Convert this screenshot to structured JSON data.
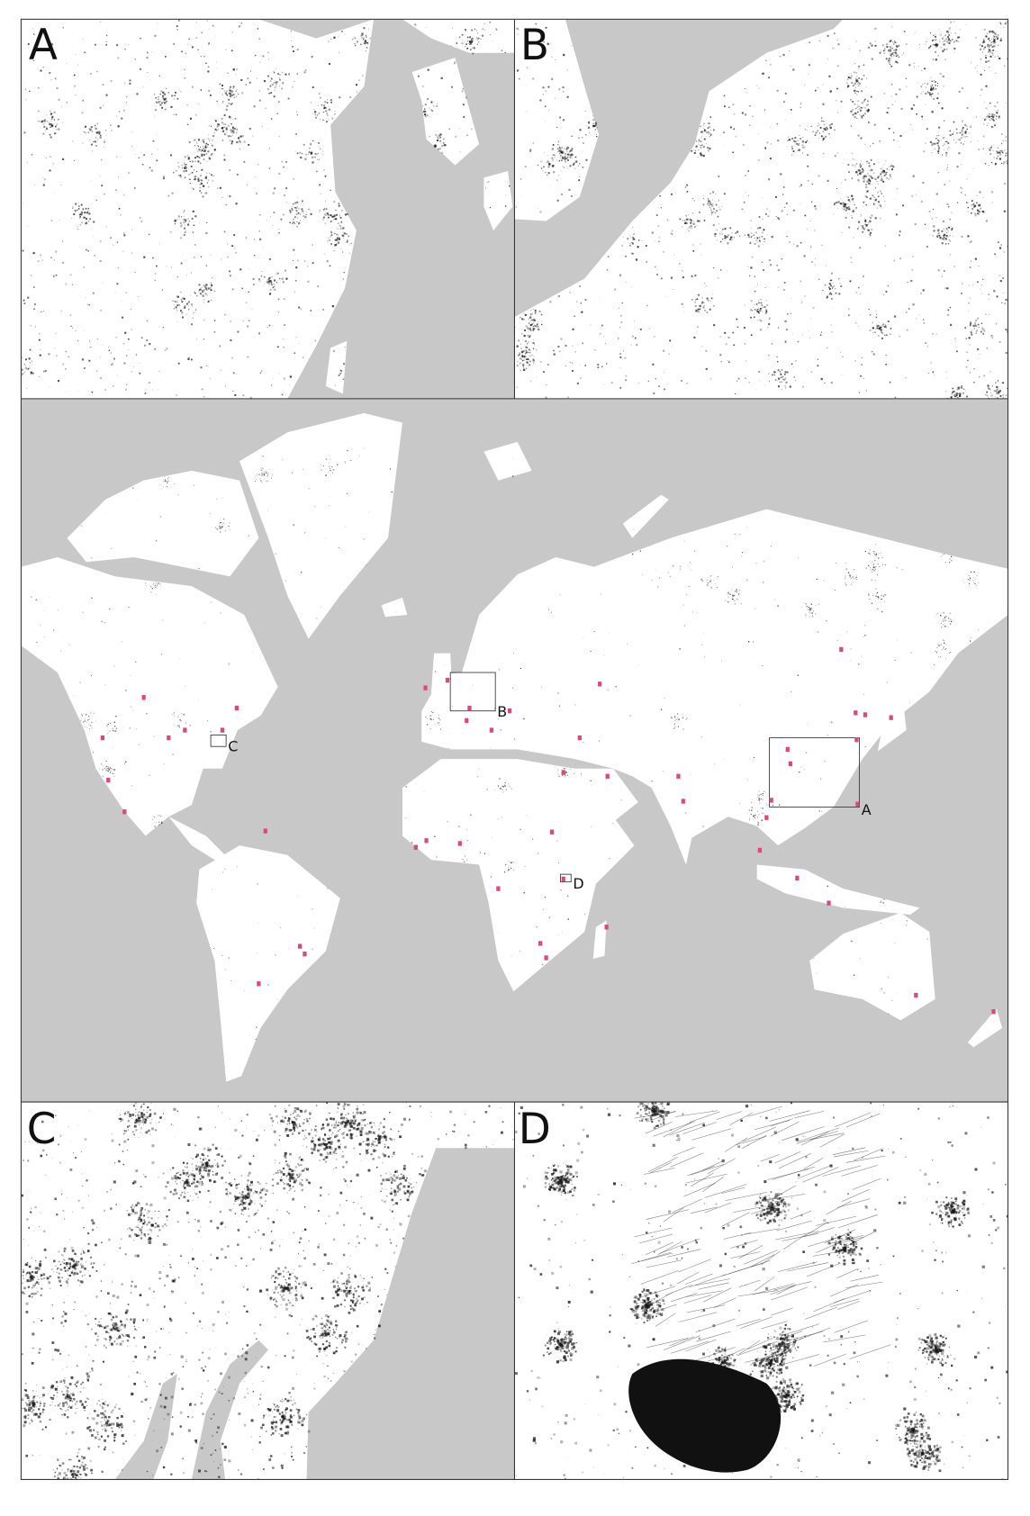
{
  "figure": {
    "panels": {
      "A": {
        "label": "A"
      },
      "B": {
        "label": "B"
      },
      "C": {
        "label": "C"
      },
      "D": {
        "label": "D"
      }
    },
    "world_map": {
      "box_labels": {
        "A": "A",
        "B": "B",
        "C": "C",
        "D": "D"
      }
    },
    "colors": {
      "water": "#c8c8c8",
      "land": "#ffffff",
      "settlement": "#1a1a1a",
      "marker": "#e0457b",
      "frame": "#333333"
    }
  }
}
